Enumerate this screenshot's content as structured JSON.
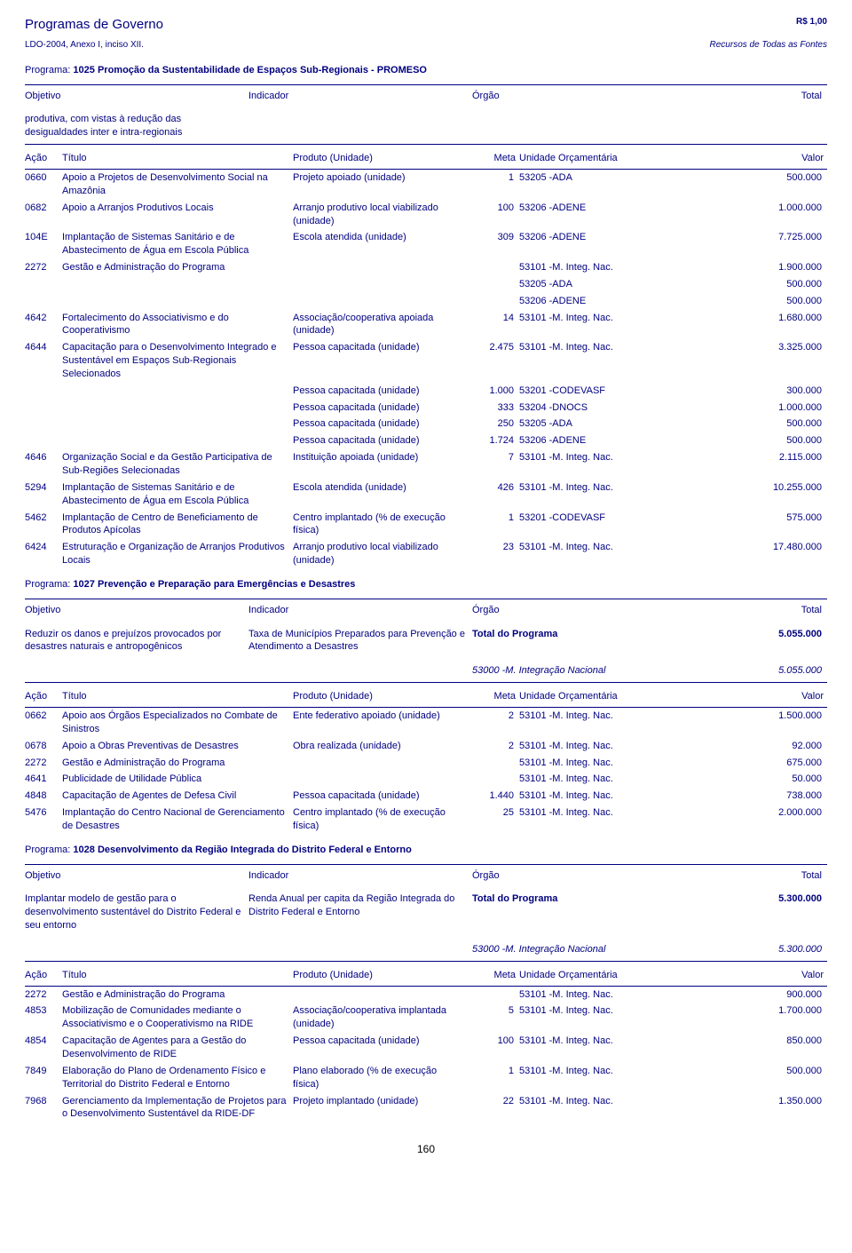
{
  "header": {
    "title": "Programas de Governo",
    "rs": "R$ 1,00",
    "ldo": "LDO-2004, Anexo I, inciso XII.",
    "recursos": "Recursos de Todas as Fontes"
  },
  "labels": {
    "programa": "Programa:",
    "objetivo": "Objetivo",
    "indicador": "Indicador",
    "orgao": "Órgão",
    "total": "Total",
    "total_programa": "Total do Programa",
    "acao": "Ação",
    "titulo": "Título",
    "produto": "Produto (Unidade)",
    "meta": "Meta",
    "unidade": "Unidade Orçamentária",
    "valor": "Valor"
  },
  "footer": {
    "page": "160"
  },
  "p1": {
    "name": "1025 Promoção da Sustentabilidade de Espaços Sub-Regionais - PROMESO",
    "objetivo": "produtiva, com vistas à redução das desigualdades inter e intra-regionais",
    "rows": [
      {
        "c": "0660",
        "t": "Apoio a Projetos de Desenvolvimento Social na Amazônia",
        "p": "Projeto apoiado (unidade)",
        "m": "1",
        "u": "53205 -ADA",
        "v": "500.000"
      },
      {
        "c": "0682",
        "t": "Apoio a Arranjos Produtivos Locais",
        "p": "Arranjo produtivo local viabilizado (unidade)",
        "m": "100",
        "u": "53206 -ADENE",
        "v": "1.000.000"
      },
      {
        "c": "104E",
        "t": "Implantação de Sistemas Sanitário e de Abastecimento de Água em Escola Pública",
        "p": "Escola atendida (unidade)",
        "m": "309",
        "u": "53206 -ADENE",
        "v": "7.725.000"
      },
      {
        "c": "2272",
        "t": "Gestão e Administração do Programa",
        "p": "",
        "m": "",
        "u": "53101 -M. Integ. Nac.",
        "v": "1.900.000"
      },
      {
        "c": "",
        "t": "",
        "p": "",
        "m": "",
        "u": "53205 -ADA",
        "v": "500.000"
      },
      {
        "c": "",
        "t": "",
        "p": "",
        "m": "",
        "u": "53206 -ADENE",
        "v": "500.000"
      },
      {
        "c": "4642",
        "t": "Fortalecimento do Associativismo e do Cooperativismo",
        "p": "Associação/cooperativa apoiada (unidade)",
        "m": "14",
        "u": "53101 -M. Integ. Nac.",
        "v": "1.680.000"
      },
      {
        "c": "4644",
        "t": "Capacitação para o Desenvolvimento Integrado e Sustentável em Espaços Sub-Regionais Selecionados",
        "p": "Pessoa capacitada (unidade)",
        "m": "2.475",
        "u": "53101 -M. Integ. Nac.",
        "v": "3.325.000"
      },
      {
        "c": "",
        "t": "",
        "p": "Pessoa capacitada (unidade)",
        "m": "1.000",
        "u": "53201 -CODEVASF",
        "v": "300.000"
      },
      {
        "c": "",
        "t": "",
        "p": "Pessoa capacitada (unidade)",
        "m": "333",
        "u": "53204 -DNOCS",
        "v": "1.000.000"
      },
      {
        "c": "",
        "t": "",
        "p": "Pessoa capacitada (unidade)",
        "m": "250",
        "u": "53205 -ADA",
        "v": "500.000"
      },
      {
        "c": "",
        "t": "",
        "p": "Pessoa capacitada (unidade)",
        "m": "1.724",
        "u": "53206 -ADENE",
        "v": "500.000"
      },
      {
        "c": "4646",
        "t": "Organização Social e da Gestão Participativa de Sub-Regiões Selecionadas",
        "p": "Instituição apoiada (unidade)",
        "m": "7",
        "u": "53101 -M. Integ. Nac.",
        "v": "2.115.000"
      },
      {
        "c": "5294",
        "t": "Implantação de Sistemas Sanitário e de Abastecimento de Água em Escola Pública",
        "p": "Escola atendida (unidade)",
        "m": "426",
        "u": "53101 -M. Integ. Nac.",
        "v": "10.255.000"
      },
      {
        "c": "5462",
        "t": "Implantação de Centro de Beneficiamento de Produtos Apícolas",
        "p": "Centro implantado (% de execução física)",
        "m": "1",
        "u": "53201 -CODEVASF",
        "v": "575.000"
      },
      {
        "c": "6424",
        "t": "Estruturação e Organização de Arranjos Produtivos Locais",
        "p": "Arranjo produtivo local viabilizado (unidade)",
        "m": "23",
        "u": "53101 -M. Integ. Nac.",
        "v": "17.480.000"
      }
    ]
  },
  "p2": {
    "name": "1027 Prevenção e Preparação para Emergências e Desastres",
    "objetivo": "Reduzir os danos e prejuízos provocados por desastres naturais e antropogênicos",
    "indicador": "Taxa de Municípios Preparados para Prevenção e Atendimento a Desastres",
    "total_v": "5.055.000",
    "org": "53000 -M. Integração Nacional",
    "org_v": "5.055.000",
    "rows": [
      {
        "c": "0662",
        "t": "Apoio aos Órgãos Especializados no Combate de Sinistros",
        "p": "Ente federativo apoiado (unidade)",
        "m": "2",
        "u": "53101 -M. Integ. Nac.",
        "v": "1.500.000"
      },
      {
        "c": "0678",
        "t": "Apoio a Obras Preventivas de Desastres",
        "p": "Obra realizada (unidade)",
        "m": "2",
        "u": "53101 -M. Integ. Nac.",
        "v": "92.000"
      },
      {
        "c": "2272",
        "t": "Gestão e Administração do Programa",
        "p": "",
        "m": "",
        "u": "53101 -M. Integ. Nac.",
        "v": "675.000"
      },
      {
        "c": "4641",
        "t": "Publicidade de Utilidade Pública",
        "p": "",
        "m": "",
        "u": "53101 -M. Integ. Nac.",
        "v": "50.000"
      },
      {
        "c": "4848",
        "t": "Capacitação de Agentes de Defesa Civil",
        "p": "Pessoa capacitada (unidade)",
        "m": "1.440",
        "u": "53101 -M. Integ. Nac.",
        "v": "738.000"
      },
      {
        "c": "5476",
        "t": "Implantação do Centro Nacional de Gerenciamento de Desastres",
        "p": "Centro implantado (% de execução física)",
        "m": "25",
        "u": "53101 -M. Integ. Nac.",
        "v": "2.000.000"
      }
    ]
  },
  "p3": {
    "name": "1028 Desenvolvimento da Região Integrada do Distrito Federal e Entorno",
    "objetivo": "Implantar modelo de gestão para o desenvolvimento sustentável do Distrito Federal e seu entorno",
    "indicador": "Renda Anual per capita da Região Integrada do Distrito Federal e Entorno",
    "total_v": "5.300.000",
    "org": "53000 -M. Integração Nacional",
    "org_v": "5.300.000",
    "rows": [
      {
        "c": "2272",
        "t": "Gestão e Administração do Programa",
        "p": "",
        "m": "",
        "u": "53101 -M. Integ. Nac.",
        "v": "900.000"
      },
      {
        "c": "4853",
        "t": "Mobilização de Comunidades mediante o Associativismo e o Cooperativismo na RIDE",
        "p": "Associação/cooperativa implantada (unidade)",
        "m": "5",
        "u": "53101 -M. Integ. Nac.",
        "v": "1.700.000"
      },
      {
        "c": "4854",
        "t": "Capacitação de Agentes para a Gestão do Desenvolvimento de RIDE",
        "p": "Pessoa capacitada (unidade)",
        "m": "100",
        "u": "53101 -M. Integ. Nac.",
        "v": "850.000"
      },
      {
        "c": "7849",
        "t": "Elaboração do Plano de Ordenamento Físico e Territorial do Distrito Federal e Entorno",
        "p": "Plano elaborado (% de execução física)",
        "m": "1",
        "u": "53101 -M. Integ. Nac.",
        "v": "500.000"
      },
      {
        "c": "7968",
        "t": "Gerenciamento da Implementação de Projetos para o Desenvolvimento Sustentável da RIDE-DF",
        "p": "Projeto implantado (unidade)",
        "m": "22",
        "u": "53101 -M. Integ. Nac.",
        "v": "1.350.000"
      }
    ]
  }
}
